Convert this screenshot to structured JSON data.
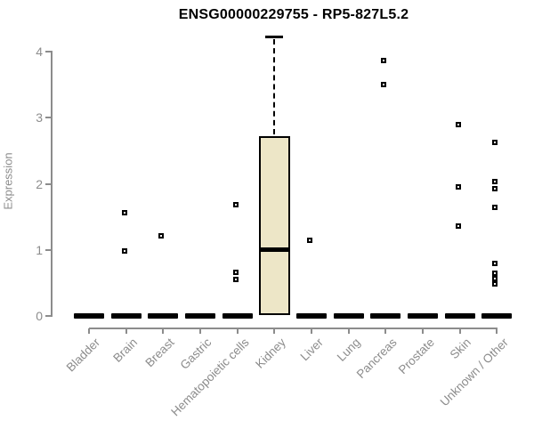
{
  "chart_data": {
    "type": "boxplot",
    "title": "ENSG00000229755 - RP5-827L5.2",
    "xlabel": "",
    "ylabel": "Expression",
    "ylim": [
      0,
      4.3
    ],
    "yticks": [
      0,
      1,
      2,
      3,
      4
    ],
    "grid": false,
    "legend": "none",
    "categories": [
      "Bladder",
      "Brain",
      "Breast",
      "Gastric",
      "Hematopoietic cells",
      "Kidney",
      "Liver",
      "Lung",
      "Pancreas",
      "Prostate",
      "Skin",
      "Unknown / Other"
    ],
    "groups": [
      {
        "label": "Bladder",
        "zero_bar": true,
        "points": []
      },
      {
        "label": "Brain",
        "zero_bar": true,
        "points": [
          1.57,
          0.98
        ]
      },
      {
        "label": "Breast",
        "zero_bar": true,
        "points": [
          1.21
        ]
      },
      {
        "label": "Gastric",
        "zero_bar": true,
        "points": []
      },
      {
        "label": "Hematopoietic cells",
        "zero_bar": true,
        "points": [
          1.68,
          0.66,
          0.55
        ]
      },
      {
        "label": "Kidney",
        "zero_bar": false,
        "box": {
          "q1": 0.02,
          "median": 1.0,
          "q3": 2.72,
          "whisker_high": 4.22
        },
        "points": []
      },
      {
        "label": "Liver",
        "zero_bar": true,
        "points": [
          1.15
        ]
      },
      {
        "label": "Lung",
        "zero_bar": true,
        "points": []
      },
      {
        "label": "Pancreas",
        "zero_bar": true,
        "points": [
          3.87,
          3.51
        ]
      },
      {
        "label": "Prostate",
        "zero_bar": true,
        "points": []
      },
      {
        "label": "Skin",
        "zero_bar": true,
        "points": [
          2.9,
          1.96,
          1.36
        ]
      },
      {
        "label": "Unknown / Other",
        "zero_bar": true,
        "points": [
          2.63,
          2.04,
          1.93,
          1.64,
          0.79,
          0.65,
          0.57,
          0.49
        ]
      }
    ],
    "colors": {
      "box_fill": "#ede6c7",
      "box_border": "#000000",
      "median": "#000000",
      "marker": "#000000",
      "axis": "#8c8c8c",
      "title": "#000000"
    },
    "marker_style": "open-square"
  }
}
